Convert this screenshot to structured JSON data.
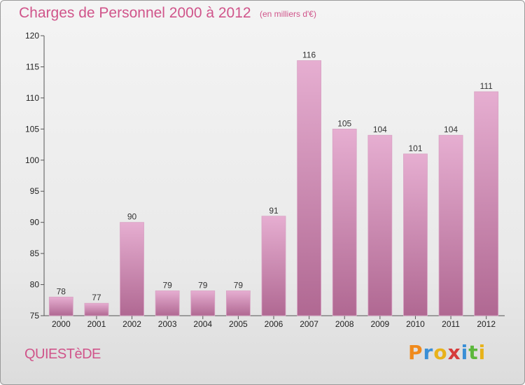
{
  "header": {
    "title": "Charges de Personnel 2000 à 2012",
    "subtitle": "(en milliers d'€)"
  },
  "footer": {
    "commune": "QUIESTèDE",
    "logo_text": "Proxiti",
    "logo_letters": [
      {
        "ch": "P",
        "color": "#f08a1c"
      },
      {
        "ch": "r",
        "color": "#3a8fd6"
      },
      {
        "ch": "o",
        "color": "#e8b21a"
      },
      {
        "ch": "x",
        "color": "#d63a3a"
      },
      {
        "ch": "i",
        "color": "#3a8fd6"
      },
      {
        "ch": "t",
        "color": "#5cb83c"
      },
      {
        "ch": "i",
        "color": "#e8b21a"
      }
    ]
  },
  "colors": {
    "title": "#d0548a",
    "bar_top": "#e3a6cc",
    "bar_bottom": "#b56a96",
    "axis": "#555555",
    "background": "#ececec"
  },
  "chart_data": {
    "type": "bar",
    "categories": [
      "2000",
      "2001",
      "2002",
      "2003",
      "2004",
      "2005",
      "2006",
      "2007",
      "2008",
      "2009",
      "2010",
      "2011",
      "2012"
    ],
    "values": [
      78,
      77,
      90,
      79,
      79,
      79,
      91,
      116,
      105,
      104,
      101,
      104,
      111
    ],
    "ylim": [
      75,
      120
    ],
    "yticks": [
      75,
      80,
      85,
      90,
      95,
      100,
      105,
      110,
      115,
      120
    ],
    "grid": false,
    "data_labels": true
  }
}
